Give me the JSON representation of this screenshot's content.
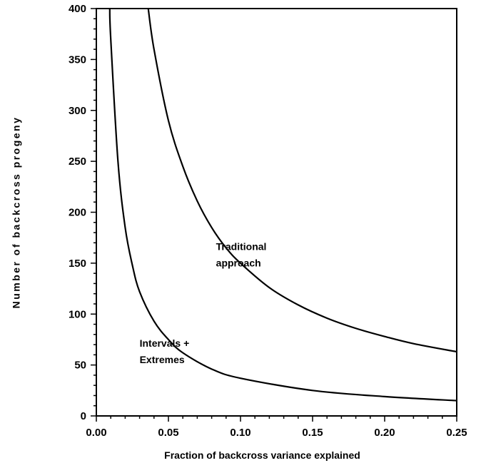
{
  "chart_data": {
    "type": "line",
    "title": "",
    "xlabel": "Fraction of backcross variance explained",
    "ylabel": "Number of backcross progeny",
    "xlim": [
      0,
      0.25
    ],
    "ylim": [
      0,
      400
    ],
    "x_ticks": [
      "0.00",
      "0.05",
      "0.10",
      "0.15",
      "0.20",
      "0.25"
    ],
    "y_ticks": [
      "0",
      "50",
      "100",
      "150",
      "200",
      "250",
      "300",
      "350",
      "400"
    ],
    "grid": false,
    "series": [
      {
        "name": "Traditional approach",
        "x": [
          0.036,
          0.04,
          0.05,
          0.06,
          0.07,
          0.08,
          0.09,
          0.1,
          0.12,
          0.14,
          0.16,
          0.18,
          0.2,
          0.22,
          0.25
        ],
        "y": [
          400,
          360,
          290,
          245,
          211,
          185,
          165,
          150,
          126,
          109,
          96,
          86,
          78,
          71,
          63
        ]
      },
      {
        "name": "Intervals + Extremes",
        "x": [
          0.0093,
          0.01,
          0.015,
          0.02,
          0.025,
          0.03,
          0.04,
          0.05,
          0.06,
          0.08,
          0.1,
          0.15,
          0.2,
          0.25
        ],
        "y": [
          400,
          370,
          250,
          185,
          148,
          122,
          93,
          75,
          62,
          46,
          37,
          25,
          19,
          15
        ]
      }
    ],
    "annotations": [
      {
        "lines": [
          "Traditional",
          "approach"
        ],
        "x": 0.083,
        "y": 163
      },
      {
        "lines": [
          "Intervals +",
          "Extremes"
        ],
        "x": 0.03,
        "y": 68
      }
    ]
  }
}
